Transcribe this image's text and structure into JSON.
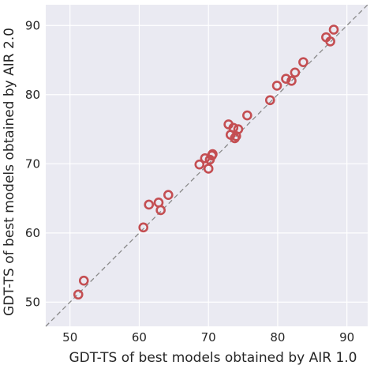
{
  "chart_data": {
    "type": "scatter",
    "title": "",
    "xlabel": "GDT-TS of best models obtained by AIR 1.0",
    "ylabel": "GDT-TS of best models obtained by AIR 2.0",
    "xlim": [
      46.5,
      93
    ],
    "ylim": [
      46.5,
      93
    ],
    "xticks": [
      50,
      60,
      70,
      80,
      90
    ],
    "yticks": [
      50,
      60,
      70,
      80,
      90
    ],
    "grid": true,
    "background": "#eaeaf2",
    "marker_color": "#c44e52",
    "diagonal_color": "#8a8a8a",
    "diagonal": "y = x (dashed)",
    "points": [
      {
        "x": 51.2,
        "y": 51.1
      },
      {
        "x": 52.0,
        "y": 53.1
      },
      {
        "x": 60.6,
        "y": 60.8
      },
      {
        "x": 61.4,
        "y": 64.1
      },
      {
        "x": 62.8,
        "y": 64.4
      },
      {
        "x": 63.1,
        "y": 63.3
      },
      {
        "x": 64.2,
        "y": 65.5
      },
      {
        "x": 68.7,
        "y": 69.9
      },
      {
        "x": 69.5,
        "y": 70.8
      },
      {
        "x": 70.0,
        "y": 69.3
      },
      {
        "x": 70.2,
        "y": 70.6
      },
      {
        "x": 70.5,
        "y": 71.2
      },
      {
        "x": 70.6,
        "y": 71.4
      },
      {
        "x": 72.9,
        "y": 75.7
      },
      {
        "x": 73.2,
        "y": 74.2
      },
      {
        "x": 73.6,
        "y": 75.2
      },
      {
        "x": 73.8,
        "y": 73.7
      },
      {
        "x": 74.0,
        "y": 74.0
      },
      {
        "x": 74.3,
        "y": 75.0
      },
      {
        "x": 75.6,
        "y": 77.0
      },
      {
        "x": 78.9,
        "y": 79.2
      },
      {
        "x": 79.9,
        "y": 81.3
      },
      {
        "x": 81.2,
        "y": 82.3
      },
      {
        "x": 82.0,
        "y": 82.0
      },
      {
        "x": 82.5,
        "y": 83.2
      },
      {
        "x": 83.7,
        "y": 84.7
      },
      {
        "x": 87.0,
        "y": 88.3
      },
      {
        "x": 87.6,
        "y": 87.7
      },
      {
        "x": 88.1,
        "y": 89.4
      }
    ]
  }
}
